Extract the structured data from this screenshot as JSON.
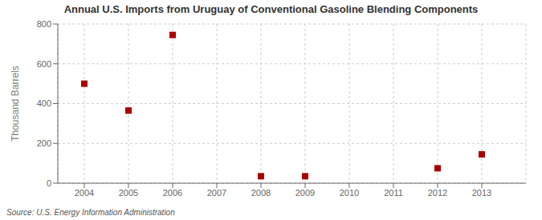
{
  "chart_data": {
    "type": "scatter",
    "title": "Annual U.S. Imports from Uruguay of Conventional Gasoline Blending Components",
    "y_label": "Thousand Barrels",
    "source": "Source: U.S. Energy Information Administration",
    "x": [
      2004,
      2005,
      2006,
      2008,
      2009,
      2012,
      2013
    ],
    "values": [
      500,
      365,
      745,
      35,
      35,
      75,
      145
    ],
    "xlim": [
      2003.4,
      2014.0
    ],
    "xticks": [
      2004,
      2005,
      2006,
      2007,
      2008,
      2009,
      2010,
      2011,
      2012,
      2013
    ],
    "ylim": [
      0,
      800
    ],
    "yticks": [
      0,
      200,
      400,
      600,
      800
    ],
    "color": "#aa0000",
    "marker": "square",
    "grid": true
  }
}
